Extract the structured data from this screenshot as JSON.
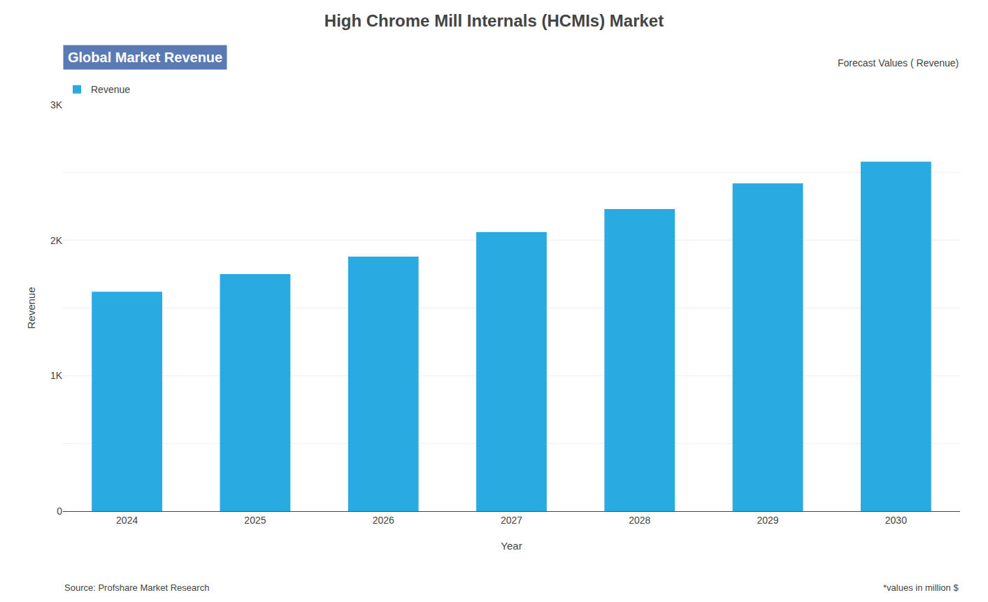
{
  "chart_data": {
    "type": "bar",
    "title": "High Chrome Mill Internals (HCMIs) Market",
    "subtitle": "Global Market Revenue",
    "annotations": [
      "Forecast Values ( Revenue)",
      "Source: Profshare Market Research",
      "*values in million $"
    ],
    "xlabel": "Year",
    "ylabel": "Revenue",
    "categories": [
      "2024",
      "2025",
      "2026",
      "2027",
      "2028",
      "2029",
      "2030"
    ],
    "series": [
      {
        "name": "Revenue",
        "color": "#29ABE2",
        "values": [
          1620,
          1750,
          1880,
          2060,
          2230,
          2420,
          2580
        ]
      }
    ],
    "ylim": [
      0,
      3000
    ],
    "yticks": [
      0,
      {
        "value": 500,
        "label": ""
      },
      {
        "value": 1000,
        "label": "1K"
      },
      {
        "value": 1500,
        "label": ""
      },
      {
        "value": 2000,
        "label": "2K"
      },
      {
        "value": 2500,
        "label": ""
      },
      {
        "value": 3000,
        "label": "3K"
      }
    ],
    "grid": true,
    "legend": "upper left"
  }
}
